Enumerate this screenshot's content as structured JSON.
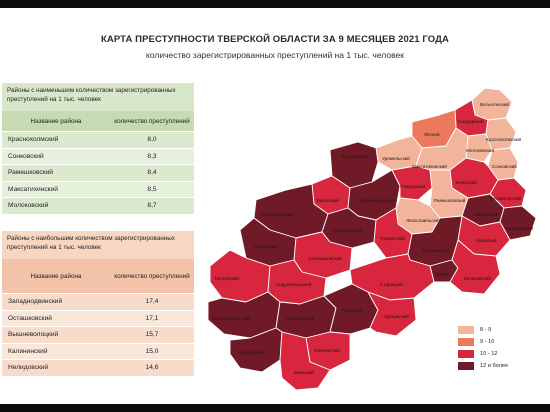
{
  "title": "КАРТА ПРЕСТУПНОСТИ ТВЕРСКОЙ ОБЛАСТИ ЗА 9 МЕСЯЦЕВ 2021 ГОДА",
  "subtitle": "количество зарегистрированных преступлений на 1 тыс. человек",
  "colors": {
    "c8_9": "#f2b49b",
    "c9_10": "#ea7a5b",
    "c10_12": "#d7263d",
    "c12": "#6f1a26"
  },
  "low_table": {
    "heading": "Районы с наименьшим количеством зарегистрированных преступлений на 1 тыс. человек",
    "col_name": "Название района",
    "col_value": "количество преступлений",
    "rows": [
      {
        "name": "Краснохолмский",
        "value": "8,0"
      },
      {
        "name": "Сонковский",
        "value": "8,3"
      },
      {
        "name": "Рамешковский",
        "value": "8,4"
      },
      {
        "name": "Максатихинский",
        "value": "8,5"
      },
      {
        "name": "Молоковский",
        "value": "8,7"
      }
    ]
  },
  "high_table": {
    "heading": "Районы с наибольшим количеством зарегистрированных преступлений на 1 тыс. человек",
    "col_name": "Название района",
    "col_value": "количество преступлений",
    "rows": [
      {
        "name": "Западнодвинский",
        "value": "17,4"
      },
      {
        "name": "Осташковский",
        "value": "17,1"
      },
      {
        "name": "Вышневолоцкий",
        "value": "15,7"
      },
      {
        "name": "Калининский",
        "value": "15,0"
      },
      {
        "name": "Нелидовский",
        "value": "14,6"
      }
    ]
  },
  "legend": [
    {
      "label": "8 - 9",
      "color": "#f2b49b"
    },
    {
      "label": "9 - 10",
      "color": "#ea7a5b"
    },
    {
      "label": "10 - 12",
      "color": "#d7263d"
    },
    {
      "label": "12 и более",
      "color": "#6f1a26"
    }
  ],
  "districts": {
    "vesyegonsky": "Весьегонский",
    "sandovsky": "Сандовский",
    "lesnoy": "Лесной",
    "krasnokholmsky": "Краснохолмский",
    "molokovsky": "Молоковский",
    "udomelsky": "Удомельский",
    "maksatikhinsky": "Максатихинский",
    "sonkovsky": "Сонковский",
    "bologovsky": "Бологовский",
    "bezhetsky": "Бежецкий",
    "kesovogorsky": "Кесовогорский",
    "firovsky": "Фировский",
    "vyshnevolotsky": "Вышневолоцкий",
    "spirovsky": "Спировский",
    "rameshkovsky": "Рамешковский",
    "kashinsky": "Кашинский",
    "kalyazinsky": "Калязинский",
    "likhoslavlsky": "Лихославльский",
    "kimrsky": "Кимрский",
    "ostashkovsky": "Осташковский",
    "kuvshinovsky": "Кувшиновский",
    "torzhoksky": "Торжокский",
    "kalininsky": "Калининский",
    "penovsky": "Пеновский",
    "selizharovsky": "Селижаровский",
    "tver": "ТВЕРЬ",
    "konakovsky": "Конаковский",
    "toropetsky": "Торопецкий",
    "andreapolsky": "Андреапольский",
    "staritsky": "Старицкий",
    "zapadnodvinsky": "Западнодвинский",
    "nelidovsky": "Нелидовский",
    "rzhevsky": "Ржевский",
    "oleninsky": "Оленинский",
    "zubtsovsky": "Зубцовский",
    "zharkovsky": "Жарковский",
    "belsky": "Бельский"
  }
}
